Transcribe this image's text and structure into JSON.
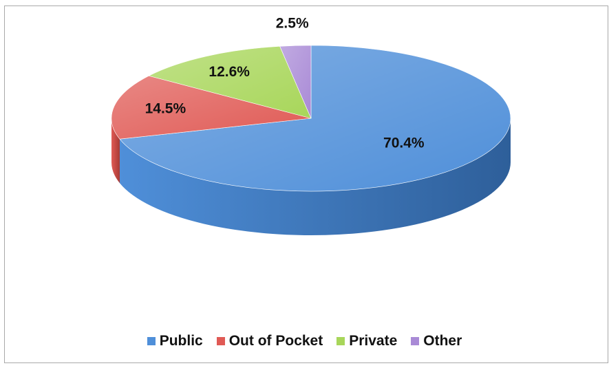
{
  "chart_data": {
    "type": "pie",
    "style": "3d",
    "categories": [
      "Public",
      "Out of Pocket",
      "Private",
      "Other"
    ],
    "values": [
      70.4,
      14.5,
      12.6,
      2.5
    ],
    "data_labels": [
      "70.4%",
      "14.5%",
      "12.6%",
      "2.5%"
    ],
    "colors": [
      "#4f8fd9",
      "#e05a55",
      "#a8d65a",
      "#a98ad6"
    ],
    "side_colors": [
      "#2e5f9a",
      "#a83a36",
      "#6f9a2e",
      "#6e559a"
    ],
    "legend_position": "bottom",
    "title": ""
  }
}
